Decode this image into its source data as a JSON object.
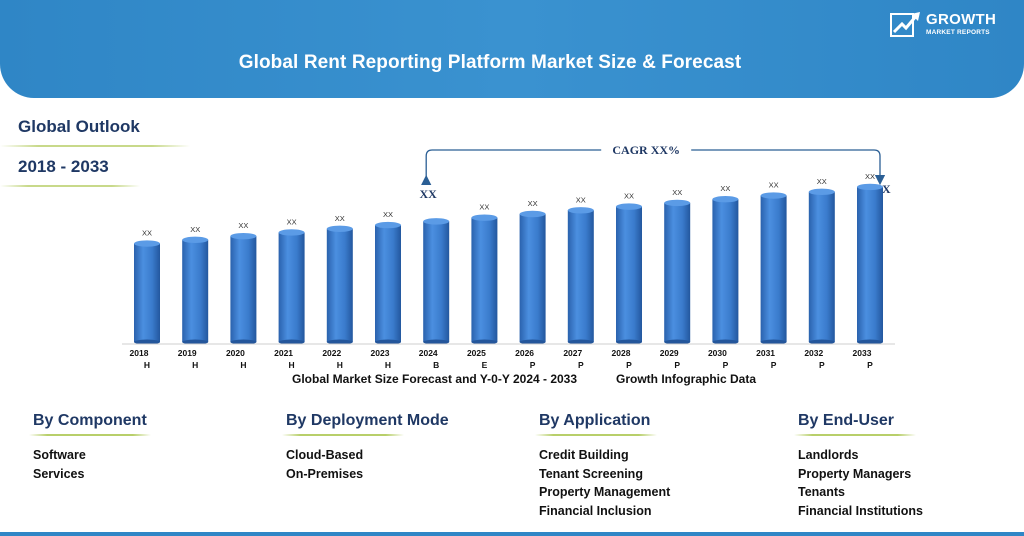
{
  "header": {
    "title": "Global Rent Reporting Platform Market Size & Forecast"
  },
  "logo": {
    "word": "GROWTH",
    "sub": "MARKET REPORTS",
    "icon": "growth-arrow-icon"
  },
  "outlook": {
    "label": "Global Outlook",
    "years": "2018 - 2033"
  },
  "chart_data": {
    "type": "bar",
    "categories": [
      "2018",
      "2019",
      "2020",
      "2021",
      "2022",
      "2023",
      "2024",
      "2025",
      "2026",
      "2027",
      "2028",
      "2029",
      "2030",
      "2031",
      "2032",
      "2033"
    ],
    "category_suffix": [
      "H",
      "H",
      "H",
      "H",
      "H",
      "H",
      "B",
      "E",
      "P",
      "P",
      "P",
      "P",
      "P",
      "P",
      "P",
      "P"
    ],
    "values": [
      80,
      83,
      86,
      89,
      92,
      95,
      98,
      101,
      104,
      107,
      110,
      113,
      116,
      119,
      122,
      126
    ],
    "data_labels": [
      "XX",
      "XX",
      "XX",
      "XX",
      "XX",
      "XX",
      "",
      "XX",
      "XX",
      "XX",
      "XX",
      "XX",
      "XX",
      "XX",
      "XX",
      "XX"
    ],
    "ylim": [
      0,
      130
    ],
    "bar_color": "#3d7fd0",
    "cagr": {
      "label": "CAGR XX%",
      "start_label": "XX",
      "end_label": "XX"
    }
  },
  "captions": {
    "left": "Global Market Size Forecast and Y-0-Y  2024 - 2033",
    "right": "Growth Infographic Data"
  },
  "segments": [
    {
      "title": "By Component",
      "items": [
        "Software",
        "Services"
      ]
    },
    {
      "title": "By Deployment Mode",
      "items": [
        "Cloud-Based",
        "On-Premises"
      ]
    },
    {
      "title": "By Application",
      "items": [
        "Credit Building",
        "Tenant Screening",
        "Property Management",
        "Financial Inclusion"
      ]
    },
    {
      "title": "By End-User",
      "items": [
        "Landlords",
        "Property Managers",
        "Tenants",
        "Financial Institutions"
      ]
    }
  ]
}
